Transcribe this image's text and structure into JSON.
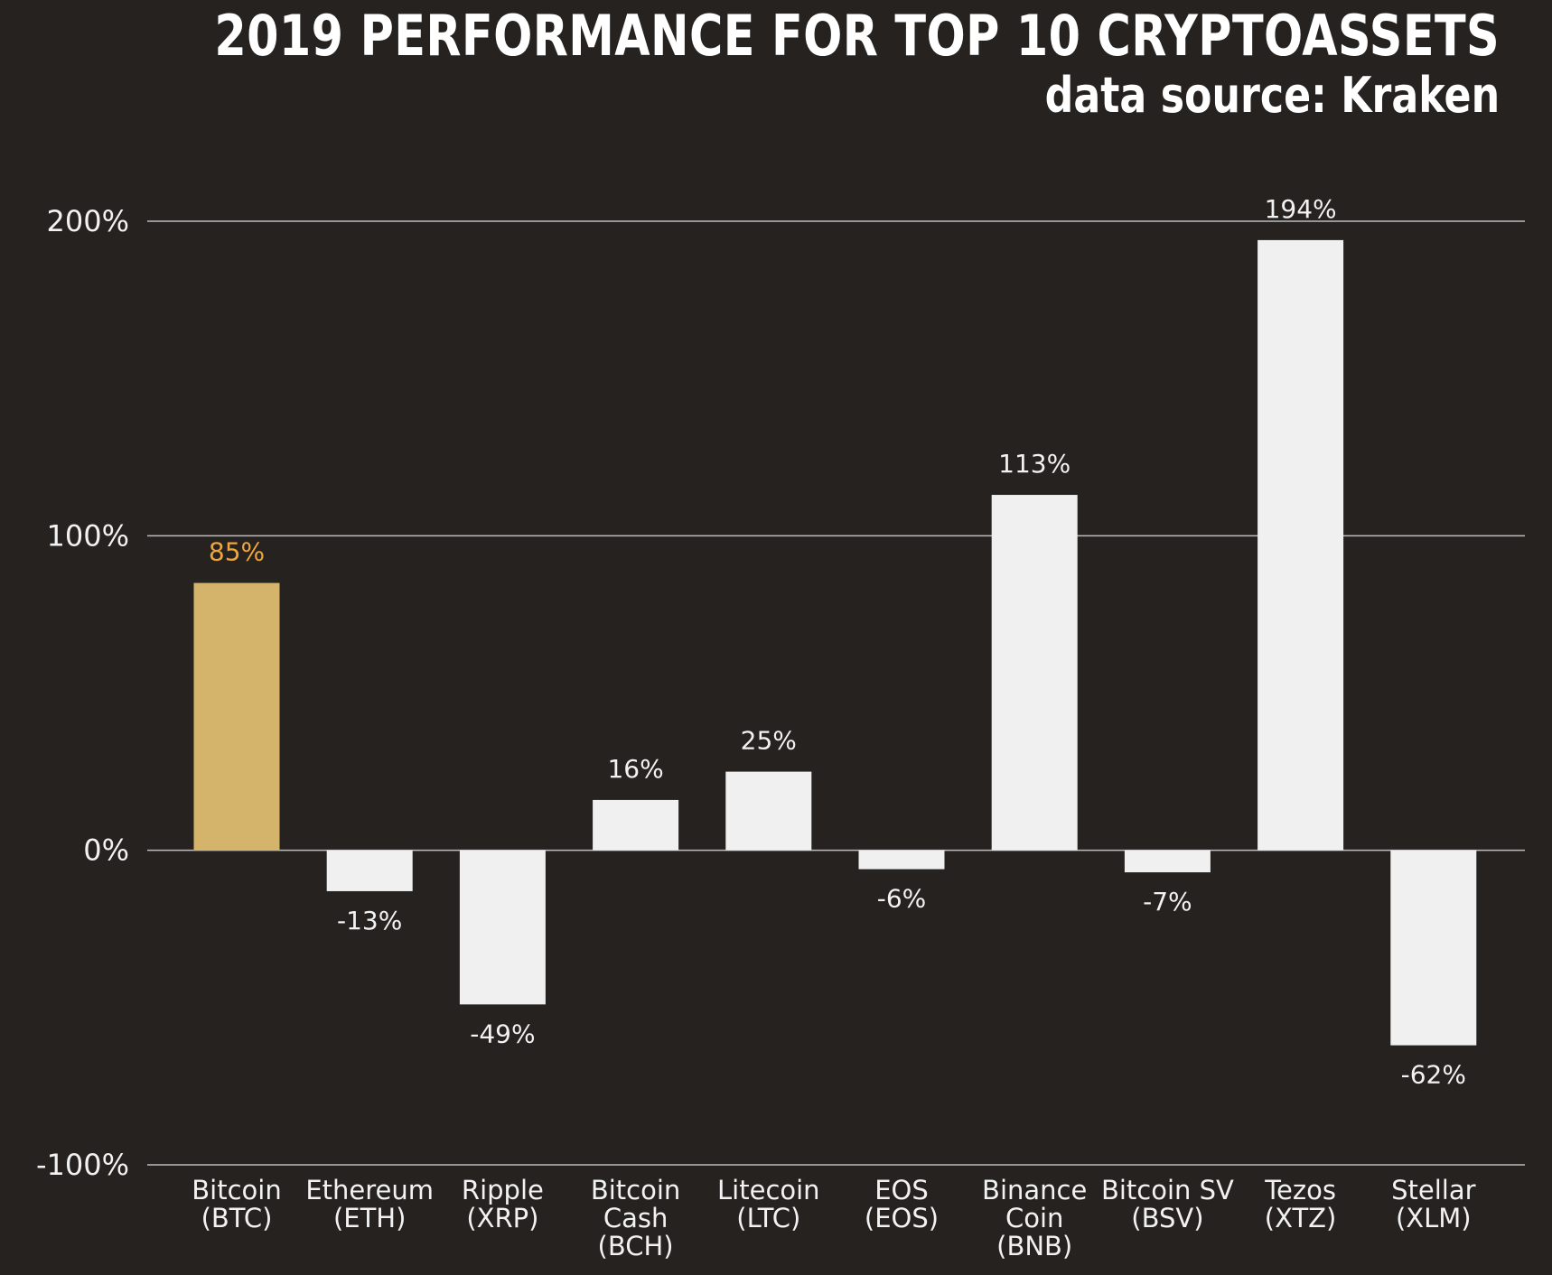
{
  "title": "2019 PERFORMANCE FOR TOP 10 CRYPTOASSETS",
  "subtitle": "data source: Kraken",
  "colors": {
    "background": "#252220",
    "highlight_bar": "#D4B36A",
    "highlight_label": "#F0A63A",
    "bar": "#F0F0F0",
    "text": "#F2F2F2",
    "grid": "#BDBDBD"
  },
  "chart_data": {
    "type": "bar",
    "title": "2019 PERFORMANCE FOR TOP 10 CRYPTOASSETS",
    "subtitle": "data source: Kraken",
    "categories": [
      [
        "Bitcoin",
        "(BTC)"
      ],
      [
        "Ethereum",
        "(ETH)"
      ],
      [
        "Ripple",
        "(XRP)"
      ],
      [
        "Bitcoin",
        "Cash",
        "(BCH)"
      ],
      [
        "Litecoin",
        "(LTC)"
      ],
      [
        "EOS",
        "(EOS)"
      ],
      [
        "Binance",
        "Coin",
        "(BNB)"
      ],
      [
        "Bitcoin SV",
        "(BSV)"
      ],
      [
        "Tezos",
        "(XTZ)"
      ],
      [
        "Stellar",
        "(XLM)"
      ]
    ],
    "values": [
      85,
      -13,
      -49,
      16,
      25,
      -6,
      113,
      -7,
      194,
      -62
    ],
    "value_labels": [
      "85%",
      "-13%",
      "-49%",
      "16%",
      "25%",
      "-6%",
      "113%",
      "-7%",
      "194%",
      "-62%"
    ],
    "highlight_index": 0,
    "ylim": [
      -100,
      200
    ],
    "yticks": [
      200,
      100,
      0,
      -100
    ],
    "ytick_labels": [
      "200%",
      "100%",
      "0%",
      "-100%"
    ],
    "grid": true,
    "xlabel": "",
    "ylabel": ""
  }
}
